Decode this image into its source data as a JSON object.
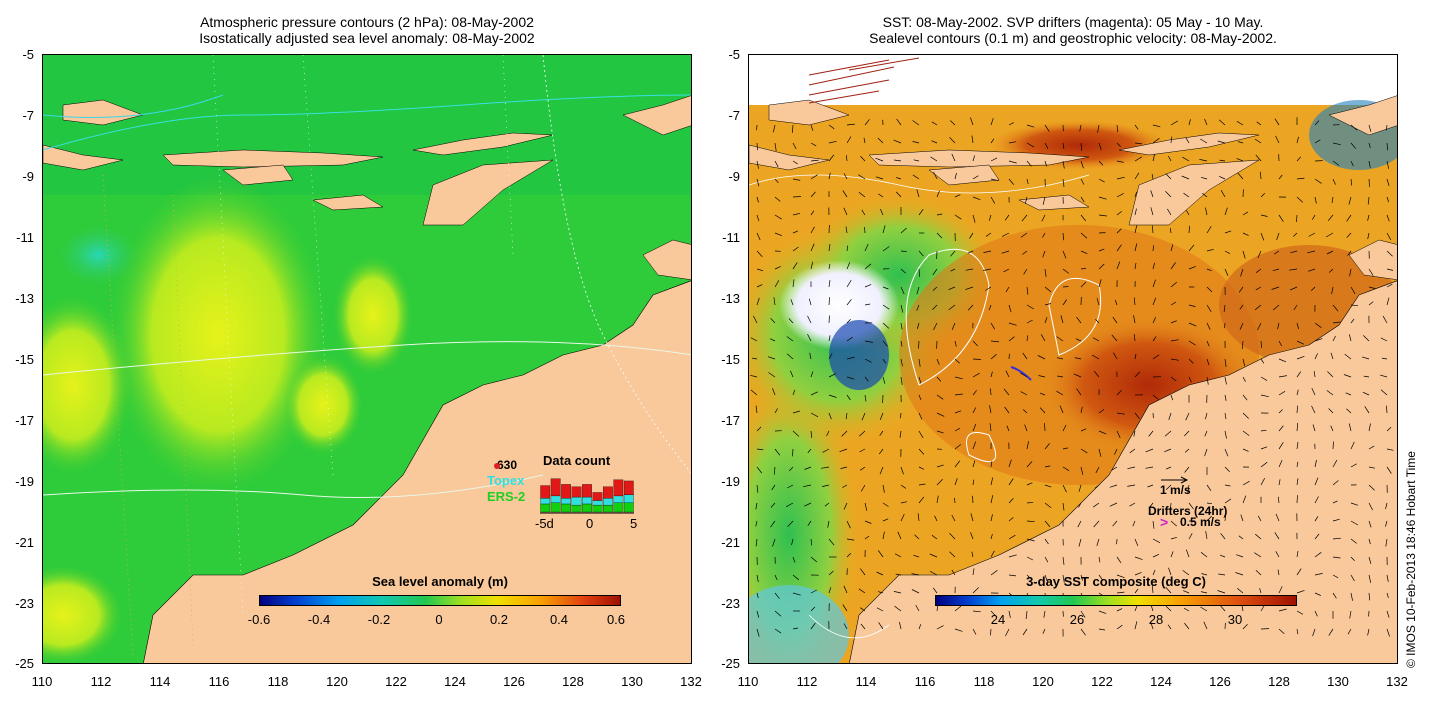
{
  "left_panel": {
    "title_line1": "Atmospheric pressure contours (2 hPa): 08-May-2002",
    "title_line2": "Isostatically adjusted sea level anomaly: 08-May-2002",
    "y_ticks": [
      "-5",
      "-7",
      "-9",
      "-11",
      "-13",
      "-15",
      "-17",
      "-19",
      "-21",
      "-23",
      "-25"
    ],
    "x_ticks": [
      "110",
      "112",
      "114",
      "116",
      "118",
      "120",
      "122",
      "124",
      "126",
      "128",
      "130",
      "132"
    ],
    "colorbar": {
      "title": "Sea level anomaly (m)",
      "ticks": [
        "-0.6",
        "-0.4",
        "-0.2",
        "0",
        "0.2",
        "0.4",
        "0.6"
      ]
    },
    "data_count": {
      "title": "Data count",
      "station": "630",
      "sources": [
        "Topex",
        "ERS-2"
      ],
      "axis_ticks": [
        "-5d",
        "0",
        "5"
      ],
      "red_heights": [
        0.55,
        0.75,
        0.6,
        0.45,
        0.55,
        0.35,
        0.5,
        0.7,
        0.6
      ],
      "cyan_heights": [
        0.25,
        0.3,
        0.25,
        0.35,
        0.3,
        0.2,
        0.3,
        0.3,
        0.35
      ],
      "green_heights": [
        0.35,
        0.4,
        0.35,
        0.3,
        0.35,
        0.3,
        0.3,
        0.4,
        0.4
      ]
    }
  },
  "right_panel": {
    "title_line1": "SST: 08-May-2002. SVP drifters (magenta): 05 May - 10 May.",
    "title_line2": "Sealevel contours (0.1 m) and geostrophic velocity: 08-May-2002.",
    "y_ticks": [
      "-5",
      "-7",
      "-9",
      "-11",
      "-13",
      "-15",
      "-17",
      "-19",
      "-21",
      "-23",
      "-25"
    ],
    "x_ticks": [
      "110",
      "112",
      "114",
      "116",
      "118",
      "120",
      "122",
      "124",
      "126",
      "128",
      "130",
      "132"
    ],
    "colorbar": {
      "title": "3-day SST composite (deg C)",
      "ticks": [
        "24",
        "26",
        "28",
        "30"
      ]
    },
    "velocity_label": "1 m/s",
    "drifters_label": "Drifters (24hr)",
    "drifter_speed_label": "0.5 m/s",
    "drifter_marker": ">"
  },
  "copyright": "© IMOS 10-Feb-2013 18:46 Hobart Time",
  "colors": {
    "land": "#f9c89b",
    "sla_green": "#27c93a",
    "sla_yellow": "#d8f01c",
    "sst_orange": "#e8961e",
    "sst_red": "#b8320a",
    "drifter": "#d020d0"
  }
}
